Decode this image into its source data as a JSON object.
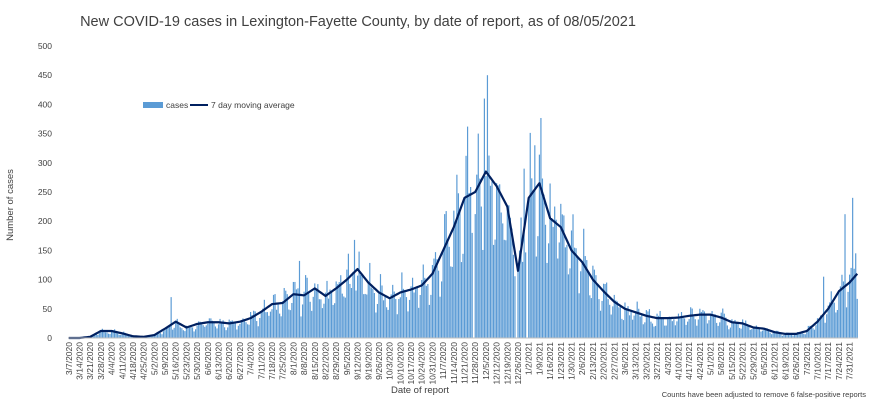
{
  "chart_data": {
    "type": "bar",
    "title": "New COVID-19 cases in Lexington-Fayette County, by date of report, as of 08/05/2021",
    "xlabel": "Date of report",
    "ylabel": "Number of cases",
    "ylim": [
      0,
      500
    ],
    "yticks": [
      "0",
      "50",
      "100",
      "150",
      "200",
      "250",
      "300",
      "350",
      "400",
      "450",
      "500"
    ],
    "x_start": "2020-03-07",
    "x_end": "2021-08-05",
    "xtick_labels": [
      "3/7/2020",
      "3/14/2020",
      "3/21/2020",
      "3/28/2020",
      "4/4/2020",
      "4/11/2020",
      "4/18/2020",
      "4/25/2020",
      "5/2/2020",
      "5/9/2020",
      "5/16/2020",
      "5/23/2020",
      "5/30/2020",
      "6/6/2020",
      "6/13/2020",
      "6/20/2020",
      "6/27/2020",
      "7/4/2020",
      "7/11/2020",
      "7/18/2020",
      "7/25/2020",
      "8/1/2020",
      "8/8/2020",
      "8/15/2020",
      "8/22/2020",
      "8/29/2020",
      "9/5/2020",
      "9/12/2020",
      "9/19/2020",
      "9/26/2020",
      "10/3/2020",
      "10/10/2020",
      "10/17/2020",
      "10/24/2020",
      "10/31/2020",
      "11/7/2020",
      "11/14/2020",
      "11/21/2020",
      "11/28/2020",
      "12/5/2020",
      "12/12/2020",
      "12/19/2020",
      "12/26/2020",
      "1/2/2021",
      "1/9/2021",
      "1/16/2021",
      "1/23/2021",
      "1/30/2021",
      "2/6/2021",
      "2/13/2021",
      "2/20/2021",
      "2/27/2021",
      "3/6/2021",
      "3/13/2021",
      "3/20/2021",
      "3/27/2021",
      "4/3/2021",
      "4/10/2021",
      "4/17/2021",
      "4/24/2021",
      "5/1/2021",
      "5/8/2021",
      "5/15/2021",
      "5/22/2021",
      "5/29/2021",
      "6/5/2021",
      "6/12/2021",
      "6/19/2021",
      "6/26/2021",
      "7/3/2021",
      "7/10/2021",
      "7/17/2021",
      "7/24/2021",
      "7/31/2021"
    ],
    "legend": {
      "position": "upper-left",
      "bar_label": "cases",
      "line_label": "7 day moving average"
    },
    "series": [
      {
        "name": "7 day moving average",
        "type": "line",
        "anchors": [
          [
            "2020-03-07",
            0
          ],
          [
            "2020-03-14",
            0
          ],
          [
            "2020-03-21",
            2
          ],
          [
            "2020-03-28",
            12
          ],
          [
            "2020-04-04",
            12
          ],
          [
            "2020-04-11",
            8
          ],
          [
            "2020-04-18",
            3
          ],
          [
            "2020-04-25",
            2
          ],
          [
            "2020-05-02",
            5
          ],
          [
            "2020-05-09",
            16
          ],
          [
            "2020-05-16",
            28
          ],
          [
            "2020-05-23",
            18
          ],
          [
            "2020-05-30",
            24
          ],
          [
            "2020-06-06",
            27
          ],
          [
            "2020-06-13",
            27
          ],
          [
            "2020-06-20",
            25
          ],
          [
            "2020-06-27",
            28
          ],
          [
            "2020-07-04",
            34
          ],
          [
            "2020-07-11",
            45
          ],
          [
            "2020-07-18",
            58
          ],
          [
            "2020-07-25",
            60
          ],
          [
            "2020-08-01",
            75
          ],
          [
            "2020-08-08",
            73
          ],
          [
            "2020-08-15",
            85
          ],
          [
            "2020-08-22",
            72
          ],
          [
            "2020-08-29",
            85
          ],
          [
            "2020-09-05",
            100
          ],
          [
            "2020-09-12",
            118
          ],
          [
            "2020-09-19",
            95
          ],
          [
            "2020-09-26",
            78
          ],
          [
            "2020-10-03",
            68
          ],
          [
            "2020-10-10",
            78
          ],
          [
            "2020-10-17",
            83
          ],
          [
            "2020-10-24",
            90
          ],
          [
            "2020-10-31",
            110
          ],
          [
            "2020-11-07",
            150
          ],
          [
            "2020-11-14",
            190
          ],
          [
            "2020-11-21",
            240
          ],
          [
            "2020-11-28",
            250
          ],
          [
            "2020-12-05",
            285
          ],
          [
            "2020-12-12",
            260
          ],
          [
            "2020-12-19",
            225
          ],
          [
            "2020-12-26",
            115
          ],
          [
            "2021-01-02",
            240
          ],
          [
            "2021-01-09",
            265
          ],
          [
            "2021-01-16",
            205
          ],
          [
            "2021-01-23",
            190
          ],
          [
            "2021-01-30",
            150
          ],
          [
            "2021-02-06",
            130
          ],
          [
            "2021-02-13",
            100
          ],
          [
            "2021-02-20",
            80
          ],
          [
            "2021-02-27",
            62
          ],
          [
            "2021-03-06",
            50
          ],
          [
            "2021-03-13",
            44
          ],
          [
            "2021-03-20",
            38
          ],
          [
            "2021-03-27",
            34
          ],
          [
            "2021-04-03",
            34
          ],
          [
            "2021-04-10",
            35
          ],
          [
            "2021-04-17",
            38
          ],
          [
            "2021-04-24",
            40
          ],
          [
            "2021-05-01",
            40
          ],
          [
            "2021-05-08",
            35
          ],
          [
            "2021-05-15",
            27
          ],
          [
            "2021-05-22",
            25
          ],
          [
            "2021-05-29",
            18
          ],
          [
            "2021-06-05",
            16
          ],
          [
            "2021-06-12",
            10
          ],
          [
            "2021-06-19",
            7
          ],
          [
            "2021-06-26",
            7
          ],
          [
            "2021-07-03",
            12
          ],
          [
            "2021-07-10",
            28
          ],
          [
            "2021-07-17",
            50
          ],
          [
            "2021-07-24",
            80
          ],
          [
            "2021-07-31",
            95
          ],
          [
            "2021-08-05",
            110
          ]
        ]
      },
      {
        "name": "cases",
        "type": "bar",
        "spikes": [
          [
            "2020-05-13",
            70
          ],
          [
            "2020-08-05",
            132
          ],
          [
            "2020-09-10",
            168
          ],
          [
            "2020-11-23",
            362
          ],
          [
            "2020-11-30",
            350
          ],
          [
            "2020-12-04",
            410
          ],
          [
            "2020-12-06",
            450
          ],
          [
            "2020-12-30",
            290
          ],
          [
            "2021-01-06",
            330
          ],
          [
            "2021-07-14",
            105
          ],
          [
            "2021-07-28",
            212
          ],
          [
            "2021-08-02",
            240
          ],
          [
            "2021-08-04",
            145
          ]
        ],
        "gaps": [
          "2020-11-27",
          "2020-12-25",
          "2021-01-01"
        ]
      }
    ],
    "annotation": "Counts have been adjusted to remove 6 false-positive reports",
    "colors": {
      "bars": "#5b9bd5",
      "line": "#002060",
      "axis": "#bfbfbf",
      "text": "#404040"
    }
  }
}
